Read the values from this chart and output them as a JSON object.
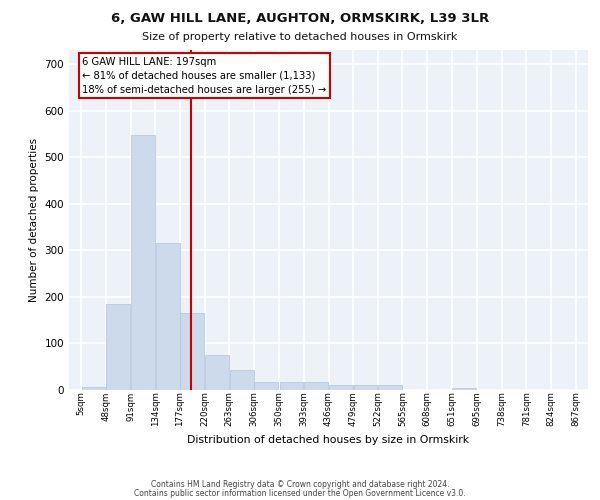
{
  "title": "6, GAW HILL LANE, AUGHTON, ORMSKIRK, L39 3LR",
  "subtitle": "Size of property relative to detached houses in Ormskirk",
  "xlabel": "Distribution of detached houses by size in Ormskirk",
  "ylabel": "Number of detached properties",
  "bar_color": "#cddaeb",
  "bar_edge_color": "#b0c4de",
  "background_color": "#edf2f9",
  "grid_color": "#ffffff",
  "vline_x": 197,
  "vline_color": "#cc0000",
  "annotation_text": "6 GAW HILL LANE: 197sqm\n← 81% of detached houses are smaller (1,133)\n18% of semi-detached houses are larger (255) →",
  "annotation_box_color": "#cc0000",
  "footer_line1": "Contains HM Land Registry data © Crown copyright and database right 2024.",
  "footer_line2": "Contains public sector information licensed under the Open Government Licence v3.0.",
  "bin_edges": [
    5,
    48,
    91,
    134,
    177,
    220,
    263,
    306,
    350,
    393,
    436,
    479,
    522,
    565,
    608,
    651,
    695,
    738,
    781,
    824,
    867
  ],
  "bin_labels": [
    "5sqm",
    "48sqm",
    "91sqm",
    "134sqm",
    "177sqm",
    "220sqm",
    "263sqm",
    "306sqm",
    "350sqm",
    "393sqm",
    "436sqm",
    "479sqm",
    "522sqm",
    "565sqm",
    "608sqm",
    "651sqm",
    "695sqm",
    "738sqm",
    "781sqm",
    "824sqm",
    "867sqm"
  ],
  "counts": [
    7,
    185,
    547,
    315,
    165,
    75,
    42,
    18,
    17,
    17,
    10,
    11,
    11,
    0,
    0,
    5,
    0,
    0,
    0,
    0
  ],
  "ylim": [
    0,
    730
  ],
  "yticks": [
    0,
    100,
    200,
    300,
    400,
    500,
    600,
    700
  ]
}
